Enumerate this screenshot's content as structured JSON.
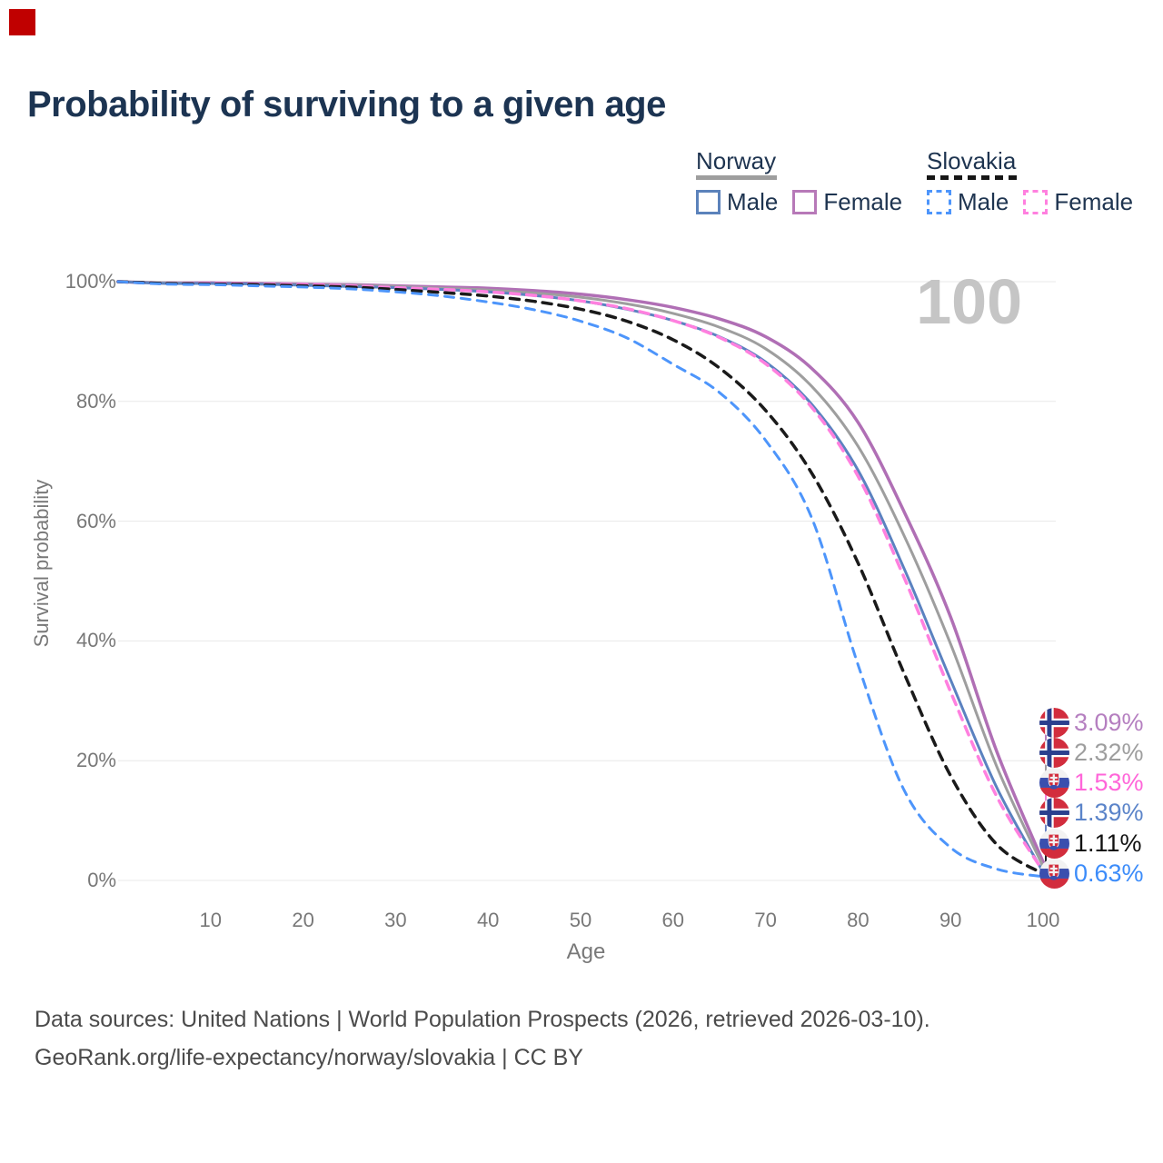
{
  "page": {
    "title": "Probability of surviving to a given age",
    "background_color": "#ffffff",
    "corner_marker_color": "#c00000",
    "text_color": "#1e3450",
    "axis_text_color": "#787878",
    "grid_color": "#e8e8e8",
    "watermark_color": "#c5c5c5"
  },
  "legend": {
    "groups": [
      {
        "label": "Norway",
        "line_style": "solid",
        "line_color": "#9e9e9e",
        "items": [
          {
            "label": "Male",
            "color": "#5b82bb",
            "style": "solid"
          },
          {
            "label": "Female",
            "color": "#b779b8",
            "style": "solid"
          }
        ]
      },
      {
        "label": "Slovakia",
        "line_style": "dashed",
        "line_color": "#161616",
        "items": [
          {
            "label": "Male",
            "color": "#4d95fb",
            "style": "dashed"
          },
          {
            "label": "Female",
            "color": "#ff80df",
            "style": "dashed"
          }
        ]
      }
    ]
  },
  "chart_data": {
    "type": "line",
    "title": "Probability of surviving to a given age",
    "xlabel": "Age",
    "ylabel": "Survival probability",
    "xlim": [
      0,
      100
    ],
    "ylim": [
      0,
      100
    ],
    "grid": true,
    "legend_position": "top-right",
    "age_counter": "100",
    "x_ticks": [
      10,
      20,
      30,
      40,
      50,
      60,
      70,
      80,
      90,
      100
    ],
    "y_ticks": [
      0,
      20,
      40,
      60,
      80,
      100
    ],
    "y_tick_suffix": "%",
    "ages": [
      0,
      5,
      10,
      15,
      20,
      25,
      30,
      35,
      40,
      45,
      50,
      55,
      60,
      65,
      70,
      75,
      80,
      85,
      90,
      95,
      100
    ],
    "series": [
      {
        "name": "Norway Female",
        "country": "Norway",
        "sex": "Female",
        "style": "solid",
        "color": "#b06fb5",
        "width": 3.5,
        "end_value": 3.09,
        "end_label": "3.09%",
        "label_color": "#b57fc0",
        "values": [
          100,
          99.8,
          99.8,
          99.7,
          99.6,
          99.5,
          99.3,
          99.1,
          98.9,
          98.5,
          97.9,
          97.0,
          95.7,
          93.8,
          90.8,
          85.5,
          76.5,
          61.5,
          44.0,
          21.5,
          3.09
        ]
      },
      {
        "name": "Norway",
        "country": "Norway",
        "sex": "Both",
        "style": "solid",
        "color": "#9e9e9e",
        "width": 3,
        "end_value": 2.32,
        "end_label": "2.32%",
        "label_color": "#9e9e9e",
        "values": [
          100,
          99.8,
          99.7,
          99.6,
          99.5,
          99.4,
          99.2,
          98.9,
          98.6,
          98.1,
          97.4,
          96.3,
          94.7,
          92.4,
          88.8,
          82.5,
          72.5,
          57.5,
          39.5,
          19.0,
          2.32
        ]
      },
      {
        "name": "Norway Male",
        "country": "Norway",
        "sex": "Male",
        "style": "solid",
        "color": "#5b82c0",
        "width": 3,
        "end_value": 1.39,
        "end_label": "1.39%",
        "label_color": "#5b84c9",
        "values": [
          100,
          99.7,
          99.7,
          99.6,
          99.4,
          99.2,
          99.0,
          98.7,
          98.3,
          97.7,
          96.8,
          95.4,
          93.5,
          90.8,
          86.6,
          79.5,
          68.5,
          52.0,
          33.5,
          15.5,
          1.39
        ]
      },
      {
        "name": "Slovakia Female",
        "country": "Slovakia",
        "sex": "Female",
        "style": "dashed",
        "color": "#ff80df",
        "width": 3.5,
        "end_value": 1.53,
        "end_label": "1.53%",
        "label_color": "#ff66d9",
        "values": [
          100,
          99.7,
          99.7,
          99.6,
          99.5,
          99.3,
          99.0,
          98.7,
          98.3,
          97.7,
          96.8,
          95.5,
          93.5,
          90.7,
          86.3,
          79.0,
          67.5,
          50.5,
          31.5,
          14.0,
          1.53
        ]
      },
      {
        "name": "Slovakia",
        "country": "Slovakia",
        "sex": "Both",
        "style": "dashed",
        "color": "#1a1a1a",
        "width": 3.5,
        "end_value": 1.11,
        "end_label": "1.11%",
        "label_color": "#111111",
        "values": [
          100,
          99.7,
          99.6,
          99.5,
          99.3,
          99.1,
          98.7,
          98.2,
          97.6,
          96.7,
          95.4,
          93.4,
          90.3,
          85.6,
          78.5,
          68.0,
          53.0,
          34.5,
          17.5,
          6.0,
          1.11
        ]
      },
      {
        "name": "Slovakia Male",
        "country": "Slovakia",
        "sex": "Male",
        "style": "dashed",
        "color": "#4d95fb",
        "width": 3,
        "end_value": 0.63,
        "end_label": "0.63%",
        "label_color": "#3c8cfa",
        "values": [
          100,
          99.6,
          99.5,
          99.3,
          99.1,
          98.8,
          98.3,
          97.6,
          96.6,
          95.3,
          93.4,
          90.6,
          86.2,
          81.5,
          73.5,
          60.5,
          36.0,
          15.0,
          5.5,
          1.9,
          0.63
        ]
      }
    ]
  },
  "flags": {
    "norway": {
      "red": "#d22d3d",
      "blue": "#2b3f8e",
      "white": "#ffffff"
    },
    "slovakia": {
      "white": "#f2f2f2",
      "blue": "#3a4fae",
      "red": "#d22d3d"
    }
  },
  "footer": {
    "line1": "Data sources: United Nations | World Population Prospects (2026, retrieved 2026-03-10).",
    "line2": "GeoRank.org/life-expectancy/norway/slovakia | CC BY"
  }
}
